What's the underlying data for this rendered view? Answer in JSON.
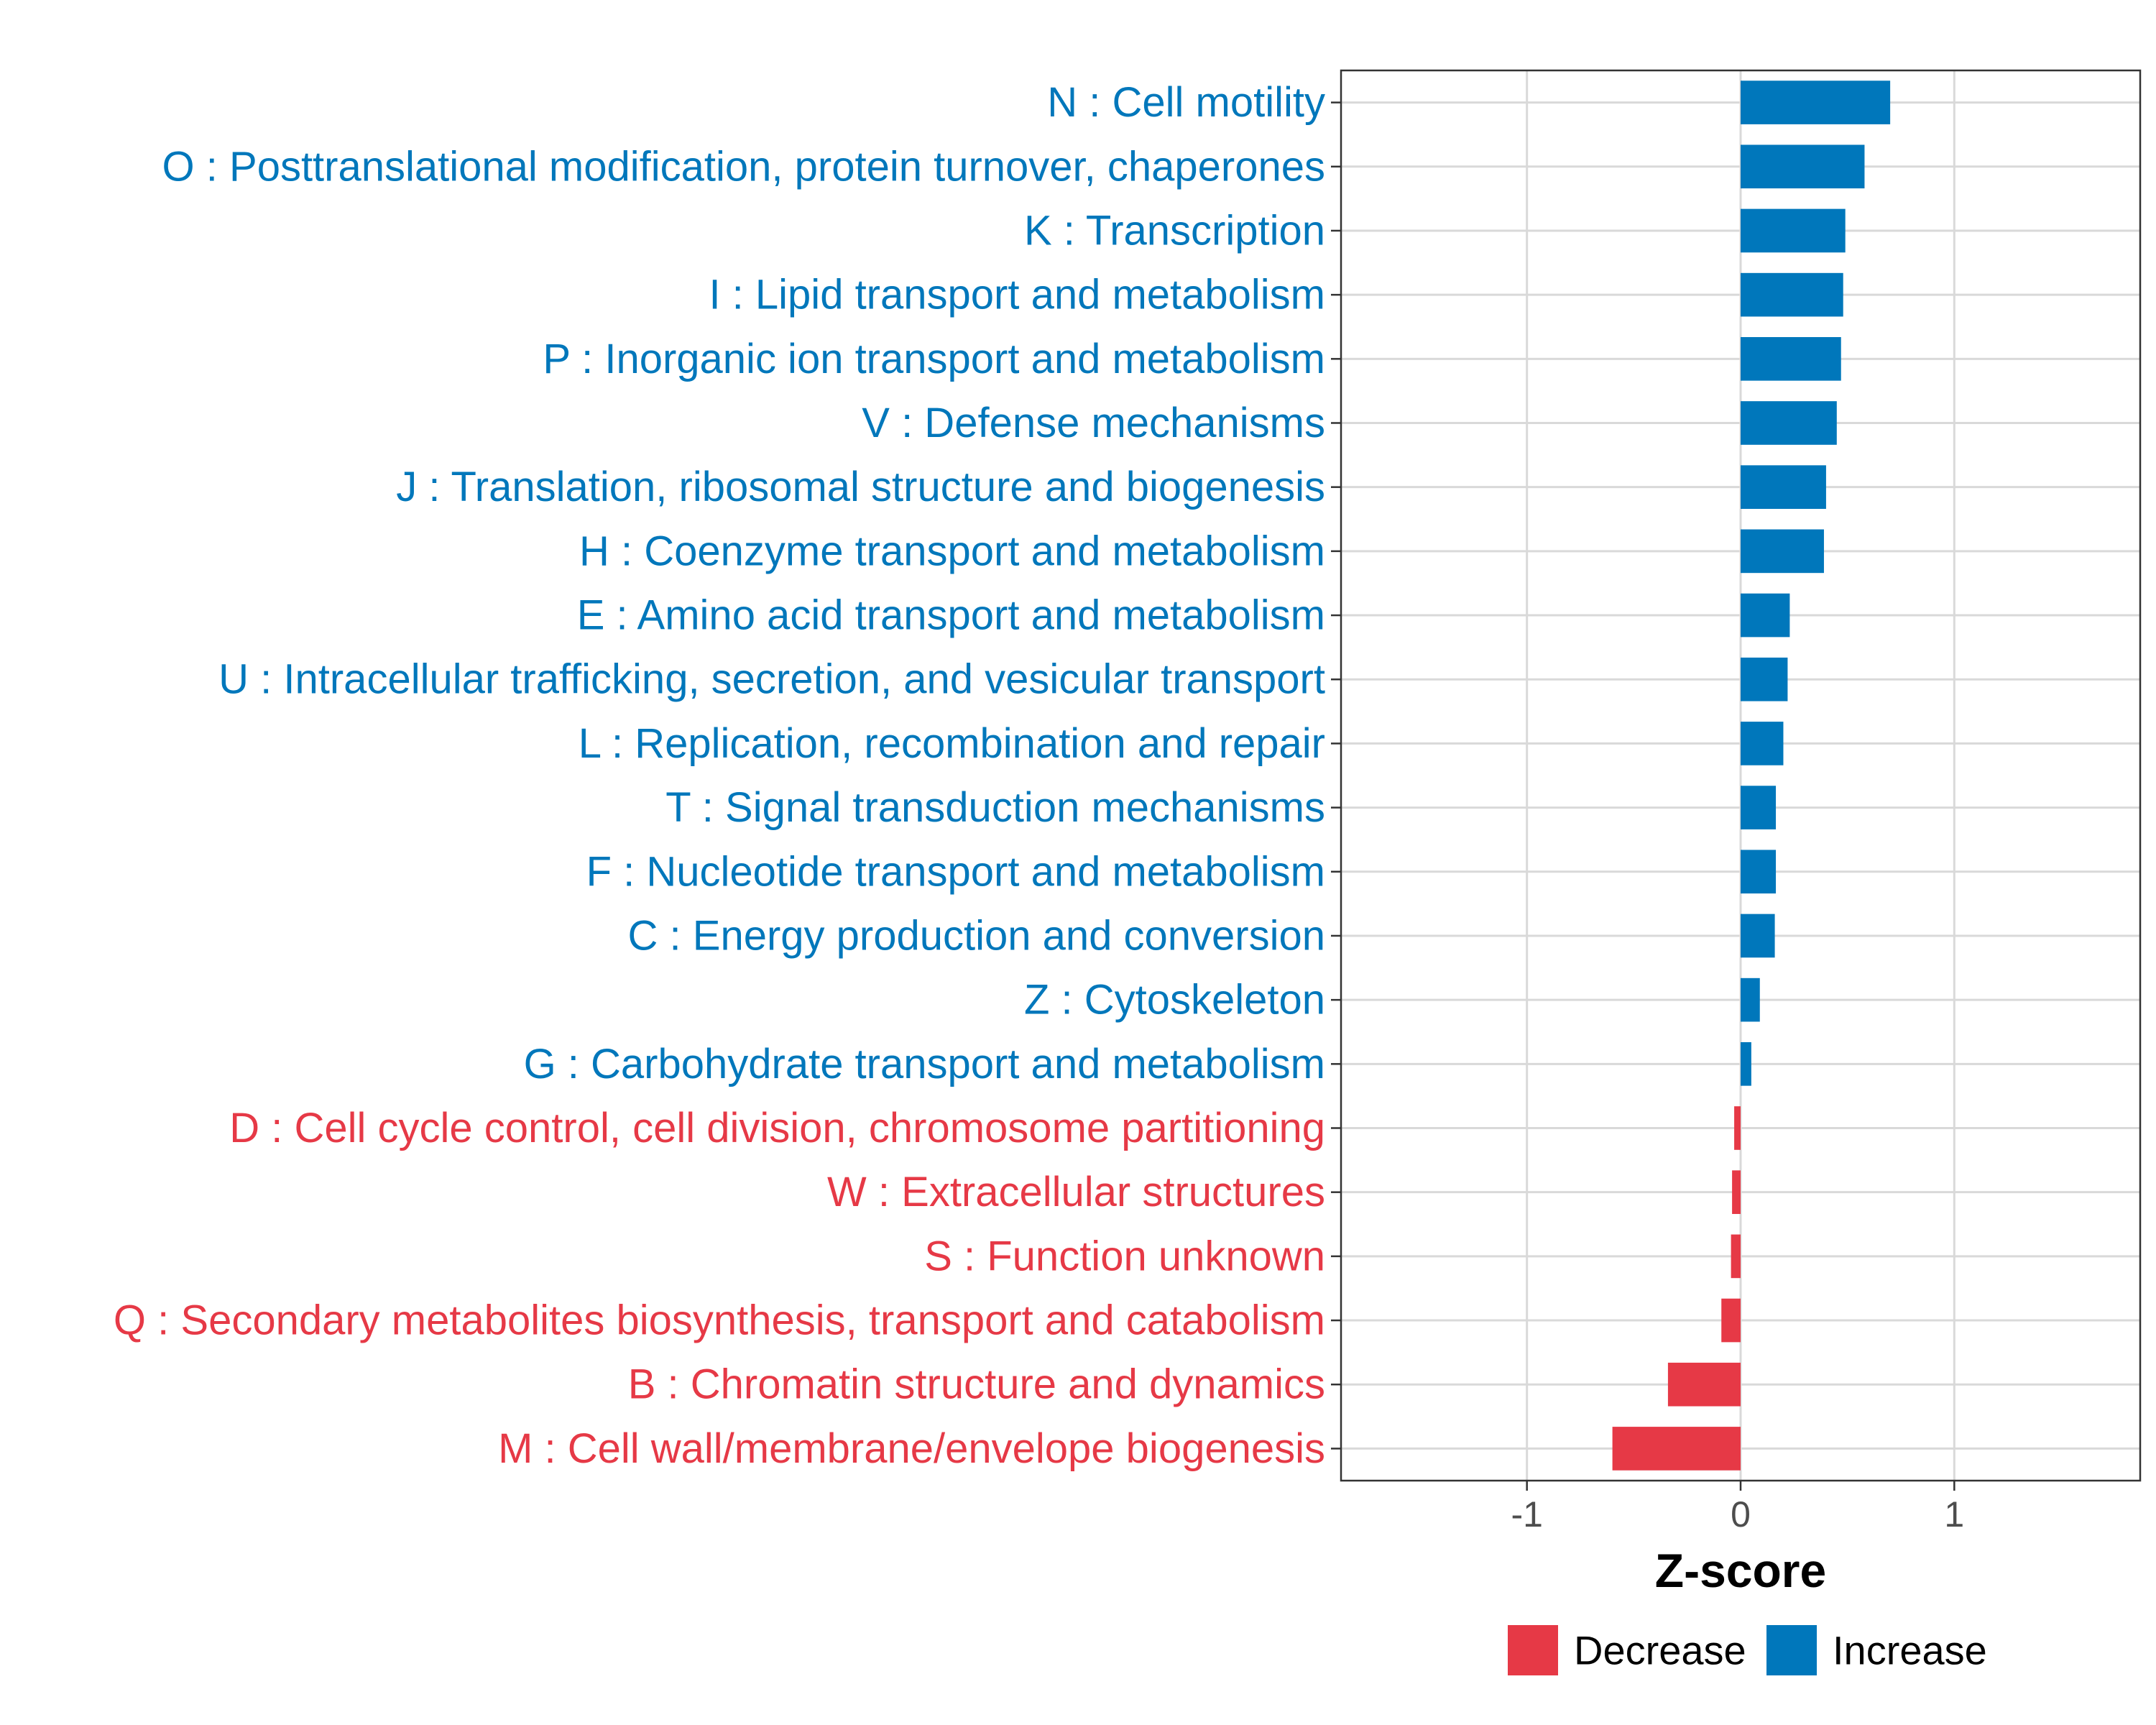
{
  "colors": {
    "increase": "#0077bb",
    "decrease": "#e63946",
    "grid": "#d9d9d9",
    "panel_border": "#333333",
    "tick_text": "#4d4d4d"
  },
  "chart_data": {
    "type": "bar",
    "orientation": "horizontal",
    "title": "",
    "xlabel": "Z-score",
    "ylabel": "",
    "xlim": [
      -1.87,
      1.87
    ],
    "xticks": [
      -1,
      0,
      1
    ],
    "xtick_labels": [
      "-1",
      "0",
      "1"
    ],
    "grid": true,
    "legend_position": "bottom",
    "legend": [
      {
        "name": "Decrease",
        "color": "#e63946"
      },
      {
        "name": "Increase",
        "color": "#0077bb"
      }
    ],
    "categories": [
      {
        "label": "N : Cell motility",
        "value": 0.7,
        "group": "Increase"
      },
      {
        "label": "O : Posttranslational modification, protein turnover, chaperones",
        "value": 0.58,
        "group": "Increase"
      },
      {
        "label": "K : Transcription",
        "value": 0.49,
        "group": "Increase"
      },
      {
        "label": "I : Lipid transport and metabolism",
        "value": 0.48,
        "group": "Increase"
      },
      {
        "label": "P : Inorganic ion transport and metabolism",
        "value": 0.47,
        "group": "Increase"
      },
      {
        "label": "V : Defense mechanisms",
        "value": 0.45,
        "group": "Increase"
      },
      {
        "label": "J : Translation, ribosomal structure and biogenesis",
        "value": 0.4,
        "group": "Increase"
      },
      {
        "label": "H : Coenzyme transport and metabolism",
        "value": 0.39,
        "group": "Increase"
      },
      {
        "label": "E : Amino acid transport and metabolism",
        "value": 0.23,
        "group": "Increase"
      },
      {
        "label": "U : Intracellular trafficking, secretion, and vesicular transport",
        "value": 0.22,
        "group": "Increase"
      },
      {
        "label": "L : Replication, recombination and repair",
        "value": 0.2,
        "group": "Increase"
      },
      {
        "label": "T : Signal transduction mechanisms",
        "value": 0.165,
        "group": "Increase"
      },
      {
        "label": "F : Nucleotide transport and metabolism",
        "value": 0.165,
        "group": "Increase"
      },
      {
        "label": "C : Energy production and conversion",
        "value": 0.16,
        "group": "Increase"
      },
      {
        "label": "Z : Cytoskeleton",
        "value": 0.09,
        "group": "Increase"
      },
      {
        "label": "G : Carbohydrate transport and metabolism",
        "value": 0.05,
        "group": "Increase"
      },
      {
        "label": "D : Cell cycle control, cell division, chromosome partitioning",
        "value": -0.03,
        "group": "Decrease"
      },
      {
        "label": "W : Extracellular structures",
        "value": -0.04,
        "group": "Decrease"
      },
      {
        "label": "S : Function unknown",
        "value": -0.045,
        "group": "Decrease"
      },
      {
        "label": "Q : Secondary metabolites biosynthesis, transport and catabolism",
        "value": -0.09,
        "group": "Decrease"
      },
      {
        "label": "B : Chromatin structure and dynamics",
        "value": -0.34,
        "group": "Decrease"
      },
      {
        "label": "M : Cell wall/membrane/envelope biogenesis",
        "value": -0.6,
        "group": "Decrease"
      }
    ]
  }
}
